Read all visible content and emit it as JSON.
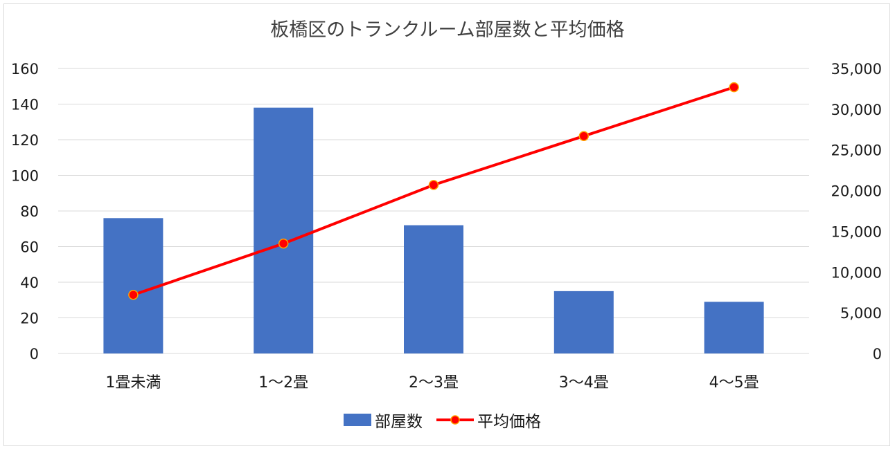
{
  "chart_data": {
    "type": "bar",
    "title": "板橋区のトランクルーム部屋数と平均価格",
    "categories": [
      "1畳未満",
      "1〜2畳",
      "2〜3畳",
      "3〜4畳",
      "4〜5畳"
    ],
    "series": [
      {
        "name": "部屋数",
        "type": "bar",
        "axis": "left",
        "color": "#4472c4",
        "values": [
          76,
          138,
          72,
          35,
          29
        ]
      },
      {
        "name": "平均価格",
        "type": "line",
        "axis": "right",
        "color": "#ff0000",
        "values": [
          7200,
          13500,
          20700,
          26700,
          32700
        ]
      }
    ],
    "y_left": {
      "min": 0,
      "max": 160,
      "step": 20,
      "ticks": [
        "0",
        "20",
        "40",
        "60",
        "80",
        "100",
        "120",
        "140",
        "160"
      ]
    },
    "y_right": {
      "min": 0,
      "max": 35000,
      "step": 5000,
      "ticks": [
        "0",
        "5,000",
        "10,000",
        "15,000",
        "20,000",
        "25,000",
        "30,000",
        "35,000"
      ]
    },
    "grid": true,
    "legend": "bottom"
  }
}
